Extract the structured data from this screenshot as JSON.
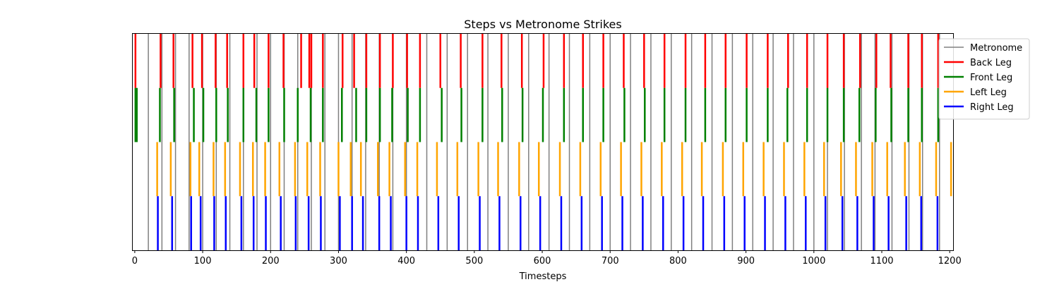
{
  "chart_data": {
    "type": "event_plot",
    "title": "Steps vs Metronome Strikes",
    "xlabel": "Timesteps",
    "ylabel": "",
    "xlim": [
      -3,
      1205
    ],
    "x_ticks": [
      0,
      100,
      200,
      300,
      400,
      500,
      600,
      700,
      800,
      900,
      1000,
      1100,
      1200
    ],
    "grid": false,
    "legend": {
      "placement": "top-right",
      "entries": [
        "Metronome",
        "Back Leg",
        "Front Leg",
        "Left Leg",
        "Right Leg"
      ]
    },
    "colors": {
      "Metronome": "#808080",
      "Back Leg": "#ff0000",
      "Front Leg": "#008000",
      "Left Leg": "#ffa500",
      "Right Leg": "#0000ff"
    },
    "metronome": [
      20,
      40,
      60,
      80,
      100,
      120,
      140,
      160,
      180,
      200,
      220,
      240,
      260,
      280,
      300,
      320,
      340,
      360,
      380,
      400,
      430,
      460,
      490,
      520,
      550,
      580,
      610,
      640,
      670,
      700,
      730,
      760,
      790,
      820,
      850,
      880,
      910,
      940,
      970,
      1000,
      1020,
      1045,
      1070,
      1090,
      1115,
      1140,
      1160,
      1185
    ],
    "series": [
      {
        "name": "Back Leg",
        "band": 0,
        "values": [
          1,
          38,
          57,
          85,
          99,
          119,
          136,
          160,
          176,
          197,
          219,
          245,
          257,
          260,
          277,
          306,
          323,
          341,
          361,
          380,
          401,
          420,
          450,
          480,
          512,
          540,
          570,
          602,
          632,
          660,
          690,
          720,
          750,
          780,
          811,
          840,
          870,
          901,
          932,
          962,
          990,
          1020,
          1044,
          1068,
          1092,
          1113,
          1139,
          1159,
          1183
        ]
      },
      {
        "name": "Front Leg",
        "band": 1,
        "values": [
          1,
          3,
          37,
          58,
          87,
          101,
          120,
          137,
          160,
          179,
          197,
          220,
          240,
          259,
          277,
          305,
          326,
          341,
          361,
          379,
          402,
          420,
          452,
          481,
          512,
          541,
          571,
          601,
          632,
          660,
          690,
          721,
          751,
          780,
          811,
          840,
          870,
          901,
          932,
          961,
          990,
          1020,
          1044,
          1067,
          1091,
          1114,
          1139,
          1159,
          1183
        ]
      },
      {
        "name": "Left Leg",
        "band": 2,
        "values": [
          33,
          53,
          82,
          95,
          116,
          133,
          155,
          174,
          192,
          213,
          236,
          254,
          273,
          300,
          318,
          333,
          358,
          375,
          398,
          416,
          445,
          475,
          506,
          535,
          566,
          595,
          626,
          656,
          686,
          716,
          746,
          776,
          806,
          835,
          866,
          896,
          926,
          956,
          986,
          1015,
          1040,
          1062,
          1086,
          1108,
          1134,
          1156,
          1180,
          1202
        ]
      },
      {
        "name": "Right Leg",
        "band": 3,
        "values": [
          34,
          55,
          83,
          97,
          117,
          134,
          157,
          175,
          193,
          215,
          237,
          256,
          274,
          302,
          320,
          336,
          360,
          377,
          400,
          417,
          447,
          477,
          508,
          537,
          568,
          597,
          628,
          658,
          688,
          718,
          748,
          778,
          808,
          837,
          868,
          898,
          928,
          958,
          988,
          1017,
          1042,
          1064,
          1088,
          1110,
          1136,
          1158,
          1182
        ]
      }
    ]
  }
}
